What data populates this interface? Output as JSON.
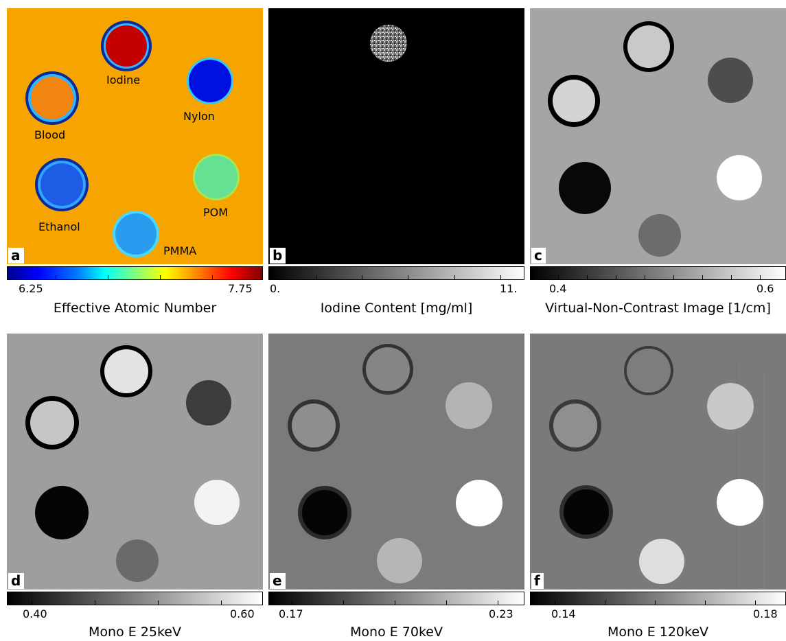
{
  "panels": [
    {
      "letter": "a",
      "title": "Effective Atomic Number",
      "min_label": "6.25",
      "max_label": "7.75",
      "colormap": "jet",
      "materials": [
        "Iodine",
        "Nylon",
        "Blood",
        "Ethanol",
        "POM",
        "PMMA"
      ]
    },
    {
      "letter": "b",
      "title": "Iodine Content [mg/ml]",
      "min_label": "0.",
      "max_label": "11.",
      "colormap": "gray"
    },
    {
      "letter": "c",
      "title": "Virtual-Non-Contrast Image [1/cm]",
      "min_label": "0.4",
      "max_label": "0.6",
      "colormap": "gray"
    },
    {
      "letter": "d",
      "title": "Mono E 25keV",
      "min_label": "0.40",
      "max_label": "0.60",
      "colormap": "gray"
    },
    {
      "letter": "e",
      "title": "Mono E 70keV",
      "min_label": "0.17",
      "max_label": "0.23",
      "colormap": "gray"
    },
    {
      "letter": "f",
      "title": "Mono E 120keV",
      "min_label": "0.14",
      "max_label": "0.18",
      "colormap": "gray"
    }
  ],
  "colors": {
    "jet_background": "#f7a800",
    "gray_background_c": "#a5a5a5",
    "gray_background_d": "#9d9d9d",
    "gray_background_ef": "#7a7a7a"
  }
}
